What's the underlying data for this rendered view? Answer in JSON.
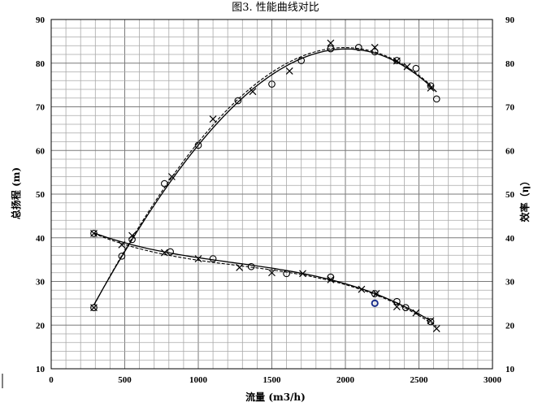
{
  "chart_data": {
    "type": "scatter",
    "title": "图3. 性能曲线对比",
    "xlabel": "流量 (m3/h)",
    "ylabel": "总扬程 (m)",
    "y2label": "效率（η）",
    "xlim": [
      0,
      3000
    ],
    "ylim": [
      10,
      90
    ],
    "y2lim": [
      10,
      90
    ],
    "xticks": [
      0,
      500,
      1000,
      1500,
      2000,
      2500,
      3000
    ],
    "yticks": [
      10,
      20,
      30,
      40,
      50,
      60,
      70,
      80,
      90
    ],
    "grid": true,
    "minor_grid_x_step": 100,
    "minor_grid_y_step": 2,
    "series": [
      {
        "marker": "x",
        "line": "dashed",
        "axis": "right",
        "x": [
          290,
          550,
          820,
          1100,
          1370,
          1620,
          1900,
          2200,
          2350,
          2420,
          2580
        ],
        "y": [
          24,
          40.5,
          54,
          67.2,
          73.5,
          78.2,
          84.6,
          83.6,
          80.5,
          79.2,
          74.3
        ]
      },
      {
        "marker": "o",
        "line": "solid",
        "axis": "right",
        "x": [
          290,
          480,
          550,
          770,
          1000,
          1270,
          1500,
          1700,
          1900,
          2090,
          2200,
          2350,
          2480,
          2580,
          2620
        ],
        "y": [
          24,
          35.8,
          39.6,
          52.4,
          61.2,
          71.4,
          75.2,
          80.6,
          83.3,
          83.6,
          82.6,
          80.6,
          78.8,
          74.8,
          71.8
        ]
      },
      {
        "marker": "x",
        "line": "dashed",
        "axis": "left",
        "x": [
          290,
          480,
          770,
          1000,
          1280,
          1500,
          1710,
          1900,
          2110,
          2210,
          2350,
          2480,
          2580,
          2620
        ],
        "y": [
          41,
          38.4,
          36.6,
          35.2,
          33.2,
          32,
          31.8,
          30.4,
          28.2,
          27.2,
          24.2,
          22.8,
          21,
          19.2
        ]
      },
      {
        "marker": "o",
        "line": "solid",
        "axis": "left",
        "x": [
          290,
          810,
          1100,
          1360,
          1600,
          1900,
          2200,
          2350,
          2410,
          2580
        ],
        "y": [
          41,
          36.8,
          35.2,
          33.4,
          31.8,
          31,
          27.2,
          25.4,
          24,
          20.8
        ]
      },
      {
        "marker": "o-blue",
        "line": "none",
        "axis": "left",
        "x": [
          2200
        ],
        "y": [
          25
        ]
      }
    ]
  }
}
